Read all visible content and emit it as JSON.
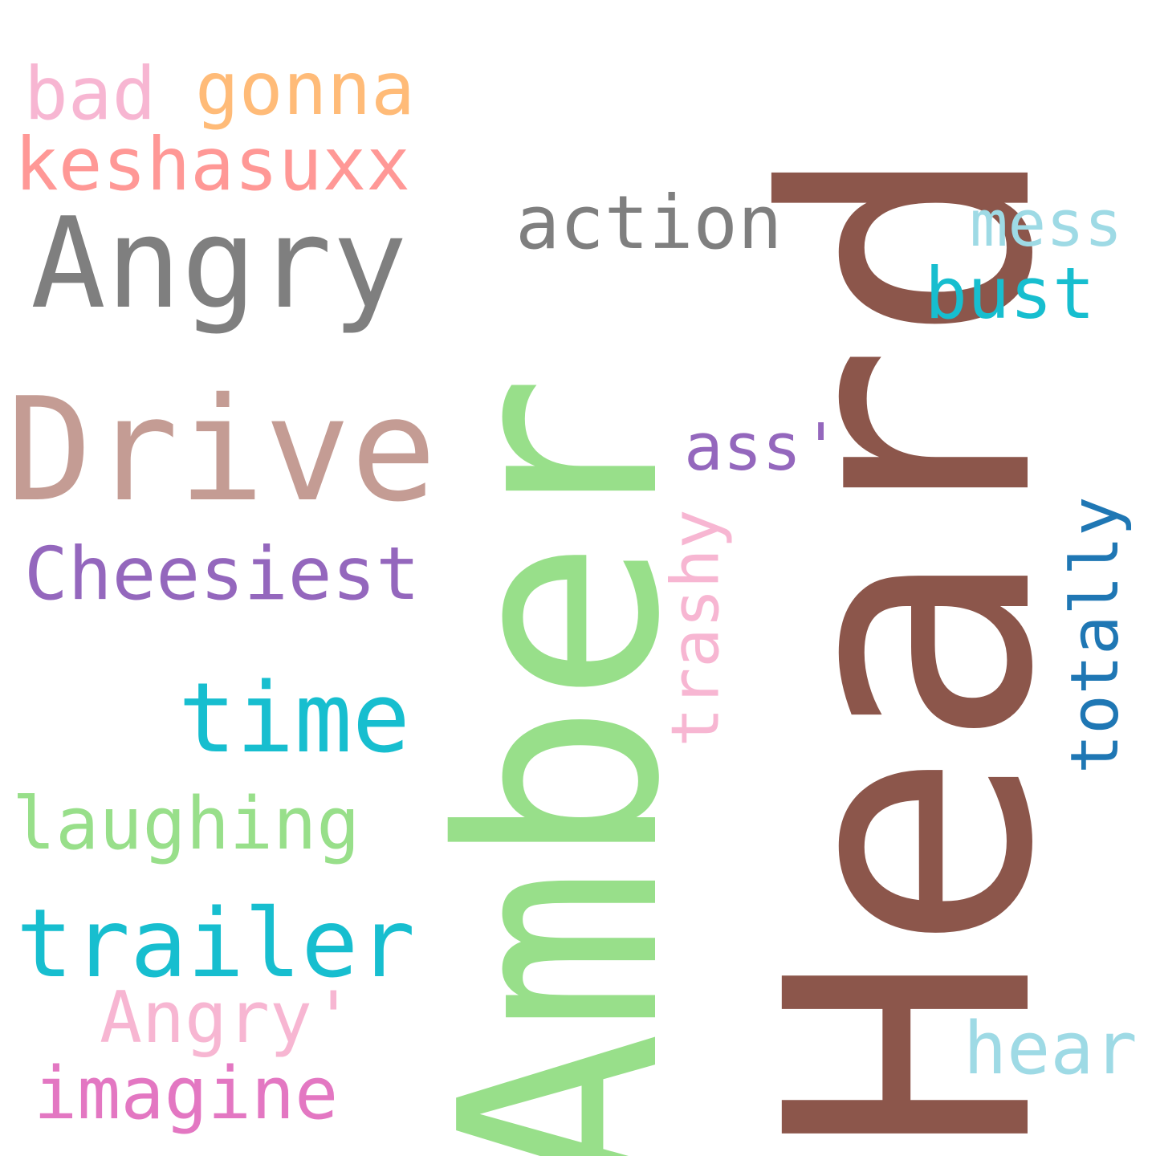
{
  "words": {
    "heard": {
      "text": "Heard",
      "color": "#8c564b"
    },
    "amber": {
      "text": "Amber",
      "color": "#98df8a"
    },
    "drive": {
      "text": "Drive",
      "color": "#c49c94"
    },
    "angry": {
      "text": "Angry",
      "color": "#7f7f7f"
    },
    "keshasuxx": {
      "text": "keshasuxx",
      "color": "#ff9896"
    },
    "gonna": {
      "text": "gonna",
      "color": "#ffbb78"
    },
    "bad": {
      "text": "bad",
      "color": "#f7b6d2"
    },
    "action": {
      "text": "action",
      "color": "#7f7f7f"
    },
    "mess": {
      "text": "mess",
      "color": "#9edae5"
    },
    "bust": {
      "text": "bust",
      "color": "#17becf"
    },
    "ass": {
      "text": "ass'",
      "color": "#9467bd"
    },
    "cheesiest": {
      "text": "Cheesiest",
      "color": "#9467bd"
    },
    "trashy": {
      "text": "trashy",
      "color": "#f7b6d2"
    },
    "totally": {
      "text": "totally",
      "color": "#1f77b4"
    },
    "time": {
      "text": "time",
      "color": "#17becf"
    },
    "laughing": {
      "text": "laughing",
      "color": "#98df8a"
    },
    "trailer": {
      "text": "trailer",
      "color": "#17becf"
    },
    "angry2": {
      "text": "Angry'",
      "color": "#f7b6d2"
    },
    "imagine": {
      "text": "imagine",
      "color": "#e377c2"
    },
    "hear": {
      "text": "hear",
      "color": "#9edae5"
    }
  }
}
